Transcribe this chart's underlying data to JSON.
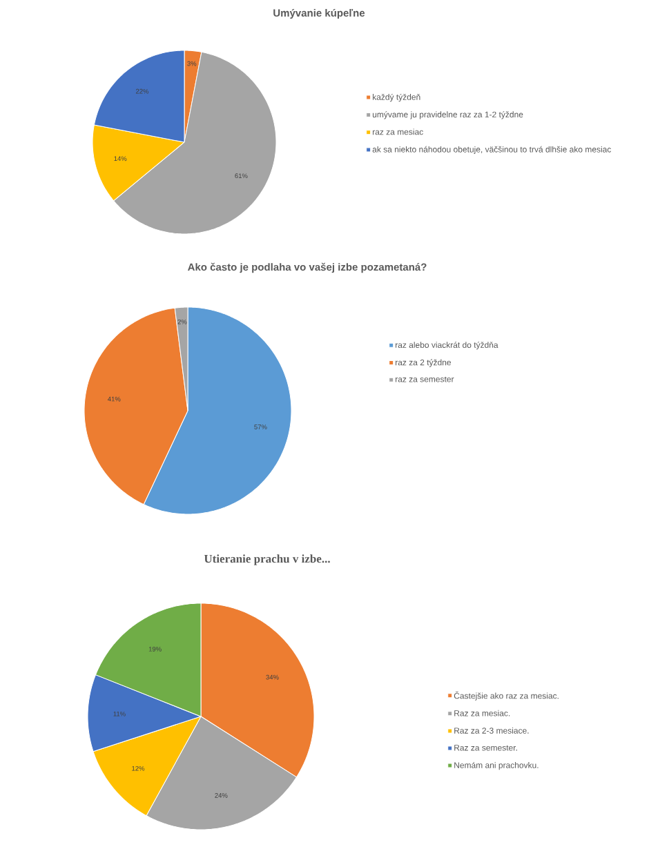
{
  "chart_data": [
    {
      "type": "pie",
      "title": "Umývanie kúpeľne",
      "categories": [
        "každý týždeň",
        "umývame ju pravidelne raz za 1-2 týždne",
        "raz za mesiac",
        "ak sa niekto náhodou obetuje, väčšinou to trvá dlhšie ako mesiac"
      ],
      "values": [
        3,
        61,
        14,
        22
      ],
      "value_labels": [
        "3%",
        "61%",
        "14%",
        "22%"
      ],
      "colors": [
        "#ed7d31",
        "#a5a5a5",
        "#ffc000",
        "#4472c4"
      ],
      "legend": "right"
    },
    {
      "type": "pie",
      "title": "Ako často je podlaha vo vašej izbe pozametaná?",
      "categories": [
        "raz alebo viackrát do týždňa",
        "raz za 2 týždne",
        "raz za semester"
      ],
      "values": [
        57,
        41,
        2
      ],
      "value_labels": [
        "57%",
        "41%",
        "2%"
      ],
      "colors": [
        "#5b9bd5",
        "#ed7d31",
        "#a5a5a5"
      ],
      "legend": "right"
    },
    {
      "type": "pie",
      "title": "Utieranie prachu v izbe...",
      "categories": [
        "Častejšie ako raz za mesiac.",
        "Raz za mesiac.",
        "Raz za 2-3 mesiace.",
        "Raz za semester.",
        "Nemám ani prachovku."
      ],
      "values": [
        34,
        24,
        12,
        11,
        19
      ],
      "value_labels": [
        "34%",
        "24%",
        "12%",
        "11%",
        "19%"
      ],
      "colors": [
        "#ed7d31",
        "#a5a5a5",
        "#ffc000",
        "#4472c4",
        "#70ad47"
      ],
      "legend": "right"
    }
  ]
}
